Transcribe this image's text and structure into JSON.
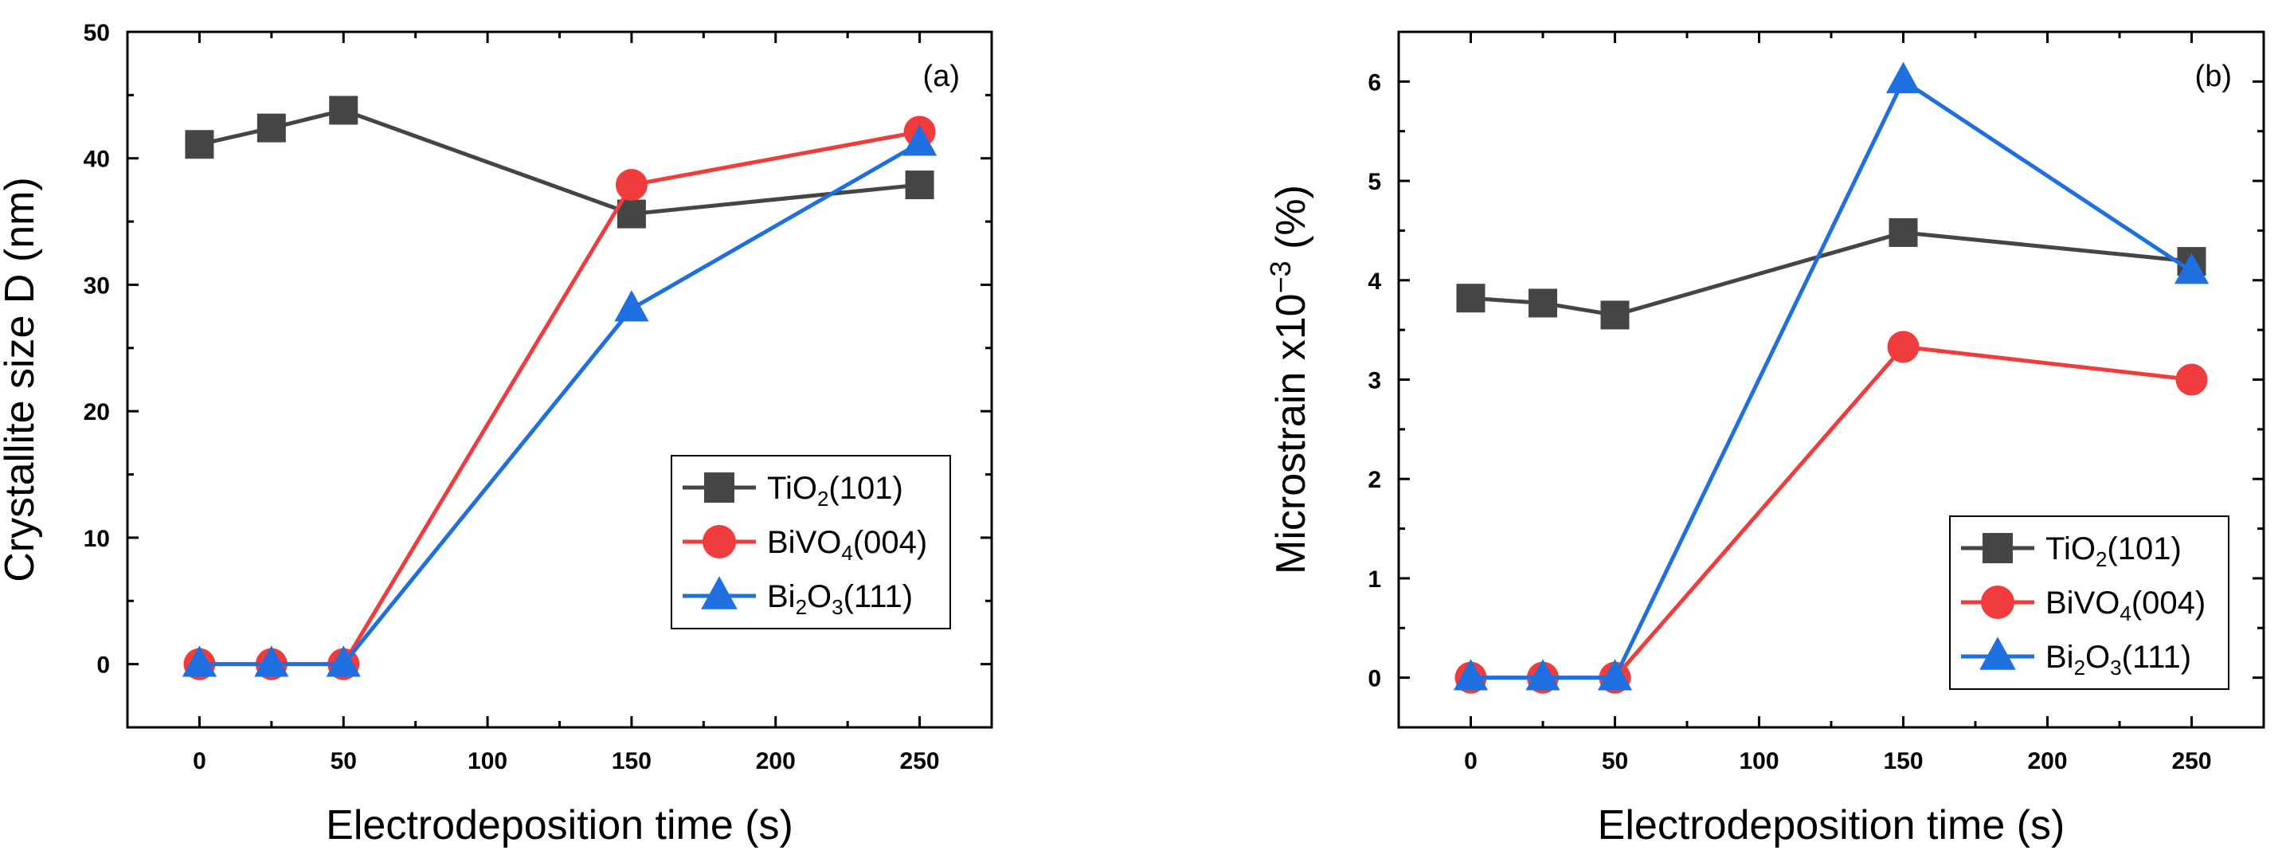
{
  "chart_data": [
    {
      "type": "line",
      "panel_label": "(a)",
      "xlabel": "Electrodeposition time (s)",
      "ylabel": "Crystallite size D (nm)",
      "xlim": [
        -25,
        275
      ],
      "ylim": [
        -5,
        50
      ],
      "xticks": [
        0,
        50,
        100,
        150,
        200,
        250
      ],
      "yticks": [
        0,
        10,
        20,
        30,
        40,
        50
      ],
      "legend_position": "lower-right",
      "x": [
        0,
        25,
        50,
        150,
        250
      ],
      "series": [
        {
          "name": "TiO2(101)",
          "label_main": "TiO",
          "label_sub": "2",
          "label_rest": "(101)",
          "color": "#454545",
          "marker": "square",
          "values": [
            41.1,
            42.4,
            43.8,
            35.6,
            37.9
          ]
        },
        {
          "name": "BiVO4(004)",
          "label_main": "BiVO",
          "label_sub": "4",
          "label_rest": "(004)",
          "color": "#f03c3c",
          "marker": "circle",
          "values": [
            0,
            0,
            0,
            37.9,
            42.1
          ]
        },
        {
          "name": "Bi2O3(111)",
          "label_main": "Bi",
          "label_sub": "2",
          "label_mid": "O",
          "label_sub2": "3",
          "label_rest": "(111)",
          "color": "#1f6fe0",
          "marker": "triangle",
          "values": [
            0,
            0,
            0,
            28.1,
            41.2
          ]
        }
      ]
    },
    {
      "type": "line",
      "panel_label": "(b)",
      "xlabel": "Electrodeposition time (s)",
      "ylabel": "Microstrain x10−3 (%)",
      "ylabel_main": "Microstrain x10",
      "ylabel_sup": "−3",
      "ylabel_rest": " (%)",
      "xlim": [
        -25,
        275
      ],
      "ylim": [
        -0.5,
        6.5
      ],
      "xticks": [
        0,
        50,
        100,
        150,
        200,
        250
      ],
      "yticks": [
        0,
        1,
        2,
        3,
        4,
        5,
        6
      ],
      "legend_position": "lower-right",
      "x": [
        0,
        25,
        50,
        150,
        250
      ],
      "series": [
        {
          "name": "TiO2(101)",
          "label_main": "TiO",
          "label_sub": "2",
          "label_rest": "(101)",
          "color": "#454545",
          "marker": "square",
          "values": [
            3.82,
            3.77,
            3.65,
            4.48,
            4.19
          ]
        },
        {
          "name": "BiVO4(004)",
          "label_main": "BiVO",
          "label_sub": "4",
          "label_rest": "(004)",
          "color": "#f03c3c",
          "marker": "circle",
          "values": [
            0,
            0,
            0,
            3.33,
            3.0
          ]
        },
        {
          "name": "Bi2O3(111)",
          "label_main": "Bi",
          "label_sub": "2",
          "label_mid": "O",
          "label_sub2": "3",
          "label_rest": "(111)",
          "color": "#1f6fe0",
          "marker": "triangle",
          "values": [
            0,
            0,
            0,
            6.01,
            4.09
          ]
        }
      ]
    }
  ]
}
